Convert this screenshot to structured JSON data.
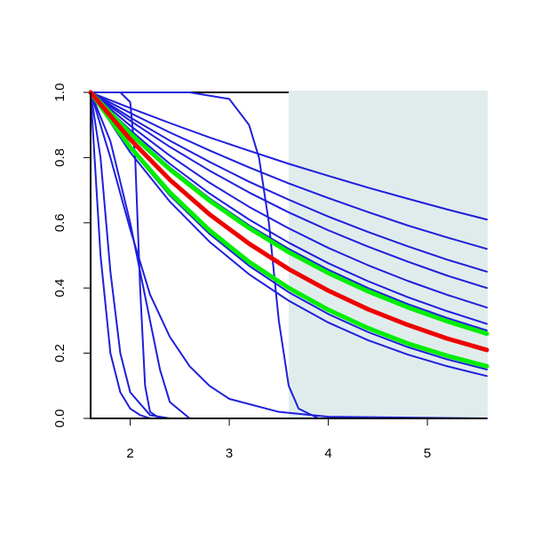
{
  "chart_data": {
    "type": "line",
    "xlim": [
      1.6,
      5.6
    ],
    "ylim": [
      0,
      1
    ],
    "xticks": [
      2,
      3,
      4,
      5
    ],
    "yticks": [
      {
        "value": 0,
        "label": "0.0"
      },
      {
        "value": 0.2,
        "label": "0.2"
      },
      {
        "value": 0.4,
        "label": "0.4"
      },
      {
        "value": 0.6,
        "label": "0.6"
      },
      {
        "value": 0.8,
        "label": "0.8"
      },
      {
        "value": 1,
        "label": "1.0"
      }
    ],
    "shaded_region": {
      "xlim": [
        3.6,
        5.6
      ],
      "color": "#e0ecec"
    },
    "x": [
      1.6,
      2.0,
      2.4,
      2.8,
      3.2,
      3.6,
      4.0,
      4.4,
      4.8,
      5.2,
      5.6
    ],
    "series": [
      {
        "color": "#1f1fdc",
        "width": 2,
        "values": [
          1,
          0.952,
          0.906,
          0.862,
          0.821,
          0.781,
          0.744,
          0.708,
          0.674,
          0.641,
          0.61
        ]
      },
      {
        "color": "#1f1fdc",
        "width": 2,
        "values": [
          1,
          0.937,
          0.877,
          0.822,
          0.77,
          0.721,
          0.676,
          0.633,
          0.592,
          0.555,
          0.52
        ]
      },
      {
        "color": "#1f1fdc",
        "width": 2,
        "values": [
          1,
          0.923,
          0.852,
          0.787,
          0.726,
          0.671,
          0.619,
          0.572,
          0.528,
          0.487,
          0.45
        ]
      },
      {
        "color": "#1f1fdc",
        "width": 2,
        "values": [
          1,
          0.913,
          0.833,
          0.76,
          0.693,
          0.632,
          0.577,
          0.527,
          0.481,
          0.438,
          0.4
        ]
      },
      {
        "color": "#1f1fdc",
        "width": 2,
        "values": [
          1,
          0.898,
          0.806,
          0.723,
          0.649,
          0.583,
          0.523,
          0.47,
          0.422,
          0.379,
          0.34
        ]
      },
      {
        "color": "#1f1fdc",
        "width": 2,
        "values": [
          1,
          0.884,
          0.781,
          0.69,
          0.61,
          0.539,
          0.476,
          0.421,
          0.372,
          0.329,
          0.29
        ]
      },
      {
        "color": "#1f1fdc",
        "width": 2,
        "values": [
          1,
          0.877,
          0.77,
          0.675,
          0.592,
          0.52,
          0.456,
          0.4,
          0.351,
          0.308,
          0.27
        ]
      },
      {
        "color": "#1f1fdc",
        "width": 2,
        "values": [
          1,
          0.827,
          0.684,
          0.566,
          0.468,
          0.387,
          0.32,
          0.265,
          0.219,
          0.181,
          0.15
        ]
      },
      {
        "color": "#1f1fdc",
        "width": 2,
        "values": [
          1,
          0.816,
          0.665,
          0.542,
          0.442,
          0.361,
          0.294,
          0.24,
          0.196,
          0.16,
          0.13
        ]
      },
      {
        "color": "#1f1fdc",
        "width": 2,
        "x": [
          1.6,
          1.7,
          1.8,
          1.9,
          2.0,
          2.1,
          2.2,
          2.3,
          5.6
        ],
        "values": [
          1,
          0.5,
          0.2,
          0.08,
          0.03,
          0.01,
          0,
          0,
          0
        ]
      },
      {
        "color": "#1f1fdc",
        "width": 2,
        "x": [
          1.6,
          1.8,
          2.0,
          2.2,
          2.4,
          2.6,
          2.8,
          3.0,
          3.5,
          4.0,
          5.6
        ],
        "values": [
          1,
          0.8,
          0.58,
          0.38,
          0.25,
          0.16,
          0.1,
          0.06,
          0.02,
          0.005,
          0
        ]
      },
      {
        "color": "#1f1fdc",
        "width": 2,
        "x": [
          1.6,
          1.8,
          2.0,
          2.1,
          2.2,
          2.3,
          2.4,
          2.6,
          5.6
        ],
        "values": [
          1,
          0.85,
          0.6,
          0.45,
          0.3,
          0.15,
          0.05,
          0,
          0
        ]
      },
      {
        "color": "#1f1fdc",
        "width": 2,
        "x": [
          1.6,
          1.9,
          2.0,
          2.05,
          2.1,
          2.15,
          2.2,
          2.3,
          5.6
        ],
        "values": [
          1,
          1,
          0.97,
          0.8,
          0.4,
          0.1,
          0.02,
          0,
          0
        ]
      },
      {
        "color": "#1f1fdc",
        "width": 2,
        "x": [
          1.6,
          2.6,
          3.0,
          3.2,
          3.3,
          3.4,
          3.5,
          3.6,
          3.7,
          3.9,
          5.6
        ],
        "values": [
          1,
          1,
          0.98,
          0.9,
          0.8,
          0.6,
          0.3,
          0.1,
          0.03,
          0,
          0
        ]
      },
      {
        "color": "#1f1fdc",
        "width": 2,
        "x": [
          1.6,
          1.7,
          1.8,
          1.9,
          2.0,
          2.2,
          2.4,
          5.6
        ],
        "values": [
          1,
          0.8,
          0.45,
          0.2,
          0.08,
          0.01,
          0,
          0
        ]
      },
      {
        "color": "#00ee00",
        "width": 5,
        "values": [
          1,
          0.874,
          0.764,
          0.668,
          0.584,
          0.51,
          0.446,
          0.39,
          0.341,
          0.298,
          0.26
        ]
      },
      {
        "color": "#00ee00",
        "width": 5,
        "values": [
          1,
          0.832,
          0.693,
          0.577,
          0.48,
          0.4,
          0.333,
          0.277,
          0.23,
          0.192,
          0.16
        ]
      },
      {
        "color": "#ee0000",
        "width": 5,
        "values": [
          1,
          0.856,
          0.732,
          0.626,
          0.536,
          0.458,
          0.392,
          0.335,
          0.287,
          0.245,
          0.21
        ]
      }
    ]
  }
}
